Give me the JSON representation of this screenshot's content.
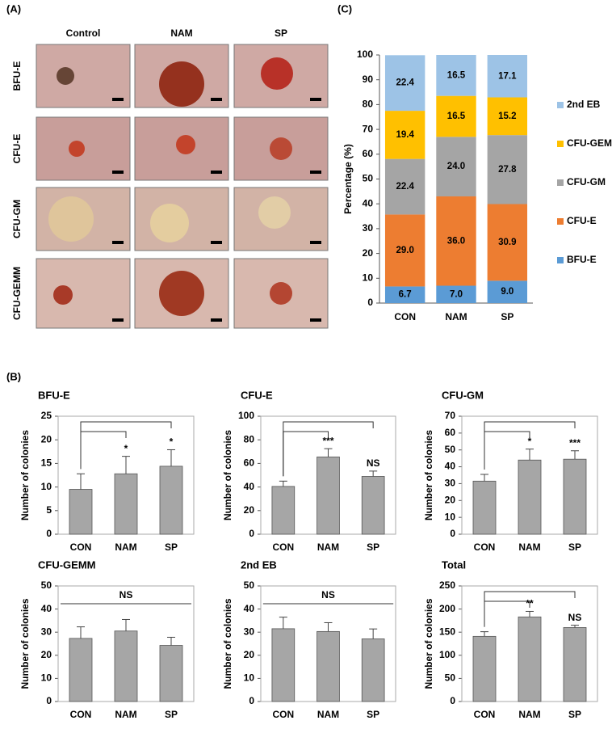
{
  "figure": {
    "panel_labels": [
      "(A)",
      "(B)",
      "(C)"
    ],
    "image_columns": [
      "Control",
      "NAM",
      "SP"
    ],
    "image_rows": [
      "BFU-E",
      "CFU-E",
      "CFU-GM",
      "CFU-GEMM"
    ]
  },
  "chart_data": [
    {
      "type": "stacked_bar",
      "ylabel": "Percentage  (%)",
      "categories": [
        "CON",
        "NAM",
        "SP"
      ],
      "ylim": [
        0,
        100
      ],
      "yticks": [
        0,
        10,
        20,
        30,
        40,
        50,
        60,
        70,
        80,
        90,
        100
      ],
      "series": [
        {
          "name": "BFU-E",
          "color": "#5b9bd5",
          "values": [
            6.7,
            7.0,
            9.0
          ],
          "value_labels": [
            "6.7",
            "7.0",
            "9.0"
          ]
        },
        {
          "name": "CFU-E",
          "color": "#ed7d31",
          "values": [
            29.0,
            36.0,
            30.9
          ],
          "value_labels": [
            "29.0",
            "36.0",
            "30.9"
          ]
        },
        {
          "name": "CFU-GM",
          "color": "#a5a5a5",
          "values": [
            22.4,
            24.0,
            27.8
          ],
          "value_labels": [
            "22.4",
            "24.0",
            "27.8"
          ]
        },
        {
          "name": "CFU-GEMM",
          "color": "#ffc000",
          "values": [
            19.4,
            16.5,
            15.2
          ],
          "value_labels": [
            "19.4",
            "16.5",
            "15.2"
          ]
        },
        {
          "name": "2nd EB",
          "color": "#9dc3e6",
          "values": [
            22.4,
            16.5,
            17.1
          ],
          "value_labels": [
            "22.4",
            "16.5",
            "17.1"
          ]
        }
      ]
    },
    {
      "type": "bar",
      "title": "BFU-E",
      "ylabel": "Number of colonies",
      "categories": [
        "CON",
        "NAM",
        "SP"
      ],
      "values": [
        9.5,
        12.8,
        14.4
      ],
      "errors": [
        3.3,
        3.7,
        3.5
      ],
      "color": "#a6a6a6",
      "ylim": [
        0,
        25
      ],
      "yticks": [
        0,
        5,
        10,
        15,
        20,
        25
      ],
      "significance": [
        null,
        "*",
        "*"
      ]
    },
    {
      "type": "bar",
      "title": "CFU-E",
      "ylabel": "Number of colonies",
      "categories": [
        "CON",
        "NAM",
        "SP"
      ],
      "values": [
        40.5,
        65.5,
        49
      ],
      "errors": [
        4.5,
        7,
        4.5
      ],
      "color": "#a6a6a6",
      "ylim": [
        0,
        100
      ],
      "yticks": [
        0,
        20,
        40,
        60,
        80,
        100
      ],
      "significance": [
        null,
        "***",
        "NS"
      ]
    },
    {
      "type": "bar",
      "title": "CFU-GM",
      "ylabel": "Number of colonies",
      "categories": [
        "CON",
        "NAM",
        "SP"
      ],
      "values": [
        31.5,
        44,
        44.5
      ],
      "errors": [
        4,
        6.5,
        5
      ],
      "color": "#a6a6a6",
      "ylim": [
        0,
        70
      ],
      "yticks": [
        0,
        10,
        20,
        30,
        40,
        50,
        60,
        70
      ],
      "significance": [
        null,
        "*",
        "***"
      ]
    },
    {
      "type": "bar",
      "title": "CFU-GEMM",
      "ylabel": "Number of colonies",
      "categories": [
        "CON",
        "NAM",
        "SP"
      ],
      "values": [
        27.3,
        30.5,
        24.3
      ],
      "errors": [
        5,
        5,
        3.5
      ],
      "color": "#a6a6a6",
      "ylim": [
        0,
        50
      ],
      "yticks": [
        0,
        10,
        20,
        30,
        40,
        50
      ],
      "significance": "NS"
    },
    {
      "type": "bar",
      "title": "2nd EB",
      "ylabel": "Number of colonies",
      "categories": [
        "CON",
        "NAM",
        "SP"
      ],
      "values": [
        31.5,
        30.3,
        27.1
      ],
      "errors": [
        5,
        3.8,
        4.3
      ],
      "color": "#a6a6a6",
      "ylim": [
        0,
        50
      ],
      "yticks": [
        0,
        10,
        20,
        30,
        40,
        50
      ],
      "significance": "NS"
    },
    {
      "type": "bar",
      "title": "Total",
      "ylabel": "Number of colonies",
      "categories": [
        "CON",
        "NAM",
        "SP"
      ],
      "values": [
        141,
        183,
        160
      ],
      "errors": [
        10,
        12,
        5
      ],
      "color": "#a6a6a6",
      "ylim": [
        0,
        250
      ],
      "yticks": [
        0,
        50,
        100,
        150,
        200,
        250
      ],
      "significance": [
        null,
        "**",
        "NS"
      ]
    }
  ]
}
